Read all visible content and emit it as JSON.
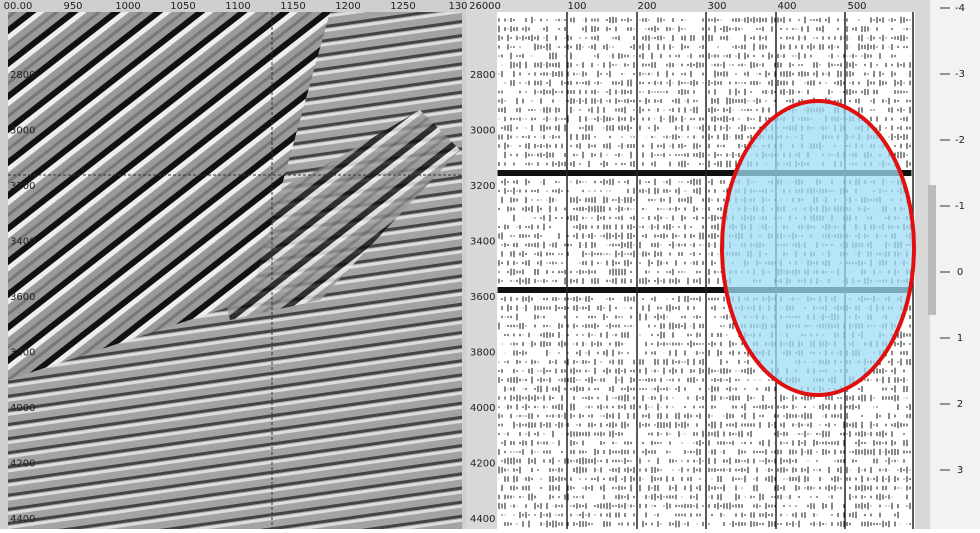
{
  "left_panel": {
    "top_labels": [
      "00.00",
      "950",
      "1000",
      "1050",
      "1100",
      "1150",
      "1200",
      "1250",
      "130"
    ],
    "side_labels": [
      "2800",
      "3000",
      "3200",
      "3400",
      "3600",
      "3800",
      "4000",
      "4200",
      "4400"
    ]
  },
  "right_panel": {
    "top_labels": [
      "26000",
      "100",
      "200",
      "300",
      "400",
      "500"
    ],
    "side_labels": [
      "2800",
      "3000",
      "3200",
      "3400",
      "3600",
      "3800",
      "4000",
      "4200",
      "4400"
    ]
  },
  "scale": {
    "labels": [
      "-4",
      "-3",
      "-2",
      "-1",
      "0",
      "1",
      "2",
      "3"
    ]
  }
}
